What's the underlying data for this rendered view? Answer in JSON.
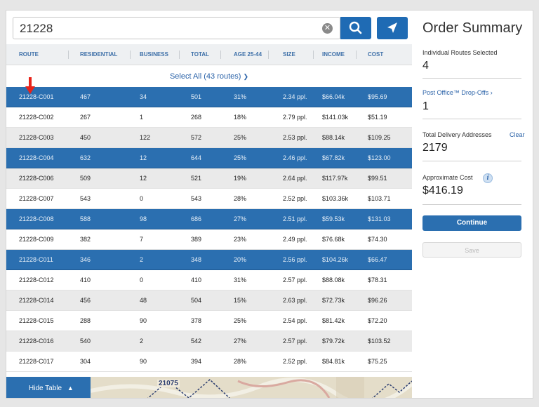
{
  "search": {
    "value": "21228"
  },
  "table": {
    "headers": [
      "ROUTE",
      "RESIDENTIAL",
      "BUSINESS",
      "TOTAL",
      "AGE 25-44",
      "SIZE",
      "INCOME",
      "COST"
    ],
    "select_all": "Select All (43 routes)",
    "rows": [
      {
        "route": "21228-C001",
        "residential": "467",
        "business": "34",
        "total": "501",
        "age": "31%",
        "size": "2.34 ppl.",
        "income": "$66.04k",
        "cost": "$95.69",
        "selected": true
      },
      {
        "route": "21228-C002",
        "residential": "267",
        "business": "1",
        "total": "268",
        "age": "18%",
        "size": "2.79 ppl.",
        "income": "$141.03k",
        "cost": "$51.19",
        "selected": false
      },
      {
        "route": "21228-C003",
        "residential": "450",
        "business": "122",
        "total": "572",
        "age": "25%",
        "size": "2.53 ppl.",
        "income": "$88.14k",
        "cost": "$109.25",
        "selected": false
      },
      {
        "route": "21228-C004",
        "residential": "632",
        "business": "12",
        "total": "644",
        "age": "25%",
        "size": "2.46 ppl.",
        "income": "$67.82k",
        "cost": "$123.00",
        "selected": true
      },
      {
        "route": "21228-C006",
        "residential": "509",
        "business": "12",
        "total": "521",
        "age": "19%",
        "size": "2.64 ppl.",
        "income": "$117.97k",
        "cost": "$99.51",
        "selected": false
      },
      {
        "route": "21228-C007",
        "residential": "543",
        "business": "0",
        "total": "543",
        "age": "28%",
        "size": "2.52 ppl.",
        "income": "$103.36k",
        "cost": "$103.71",
        "selected": false
      },
      {
        "route": "21228-C008",
        "residential": "588",
        "business": "98",
        "total": "686",
        "age": "27%",
        "size": "2.51 ppl.",
        "income": "$59.53k",
        "cost": "$131.03",
        "selected": true
      },
      {
        "route": "21228-C009",
        "residential": "382",
        "business": "7",
        "total": "389",
        "age": "23%",
        "size": "2.49 ppl.",
        "income": "$76.68k",
        "cost": "$74.30",
        "selected": false
      },
      {
        "route": "21228-C011",
        "residential": "346",
        "business": "2",
        "total": "348",
        "age": "20%",
        "size": "2.56 ppl.",
        "income": "$104.26k",
        "cost": "$66.47",
        "selected": true
      },
      {
        "route": "21228-C012",
        "residential": "410",
        "business": "0",
        "total": "410",
        "age": "31%",
        "size": "2.57 ppl.",
        "income": "$88.08k",
        "cost": "$78.31",
        "selected": false
      },
      {
        "route": "21228-C014",
        "residential": "456",
        "business": "48",
        "total": "504",
        "age": "15%",
        "size": "2.63 ppl.",
        "income": "$72.73k",
        "cost": "$96.26",
        "selected": false
      },
      {
        "route": "21228-C015",
        "residential": "288",
        "business": "90",
        "total": "378",
        "age": "25%",
        "size": "2.54 ppl.",
        "income": "$81.42k",
        "cost": "$72.20",
        "selected": false
      },
      {
        "route": "21228-C016",
        "residential": "540",
        "business": "2",
        "total": "542",
        "age": "27%",
        "size": "2.57 ppl.",
        "income": "$79.72k",
        "cost": "$103.52",
        "selected": false
      },
      {
        "route": "21228-C017",
        "residential": "304",
        "business": "90",
        "total": "394",
        "age": "28%",
        "size": "2.52 ppl.",
        "income": "$84.81k",
        "cost": "$75.25",
        "selected": false
      }
    ]
  },
  "map": {
    "hide_label": "Hide Table",
    "zip_label": "21075"
  },
  "summary": {
    "title": "Order Summary",
    "routes_label": "Individual Routes Selected",
    "routes_value": "4",
    "dropoffs_label": "Post Office™ Drop-Offs ›",
    "dropoffs_value": "1",
    "addresses_label": "Total Delivery Addresses",
    "clear_label": "Clear",
    "addresses_value": "2179",
    "cost_label": "Approximate Cost",
    "cost_value": "$416.19",
    "continue_label": "Continue",
    "save_label": "Save"
  },
  "colors": {
    "accent": "#2b6fb0",
    "selected_row": "#2b6fb0",
    "arrow": "#e8231a"
  },
  "icons": [
    "search-icon",
    "location-arrow-icon",
    "clear-icon",
    "chevron-down-icon",
    "chevron-up-icon",
    "info-icon"
  ]
}
